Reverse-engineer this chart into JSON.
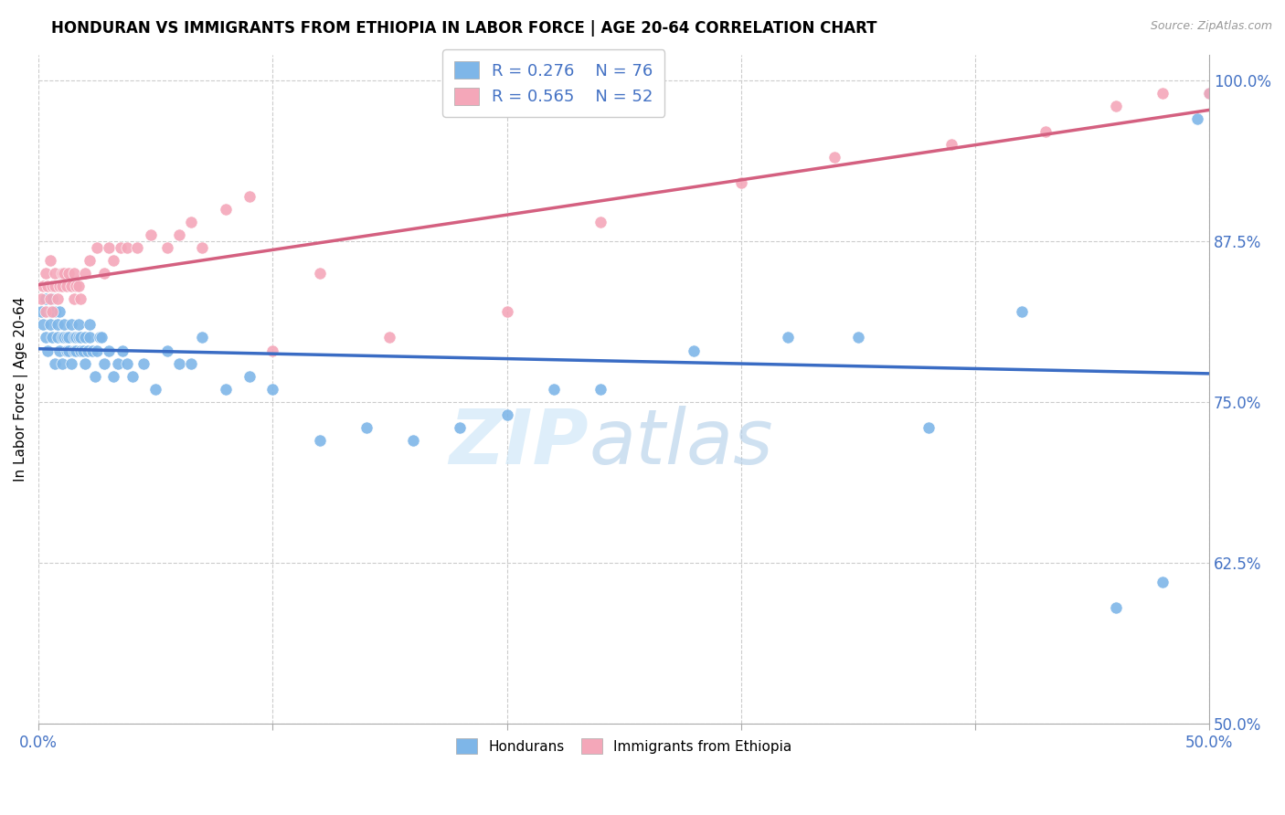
{
  "title": "HONDURAN VS IMMIGRANTS FROM ETHIOPIA IN LABOR FORCE | AGE 20-64 CORRELATION CHART",
  "source": "Source: ZipAtlas.com",
  "ylabel": "In Labor Force | Age 20-64",
  "xlim": [
    0.0,
    0.5
  ],
  "ylim": [
    0.5,
    1.02
  ],
  "yticks_right": [
    0.5,
    0.625,
    0.75,
    0.875,
    1.0
  ],
  "ytick_right_labels": [
    "50.0%",
    "62.5%",
    "75.0%",
    "87.5%",
    "100.0%"
  ],
  "blue_color": "#7EB6E8",
  "pink_color": "#F4A7B9",
  "blue_line_color": "#3A6CC4",
  "pink_line_color": "#D46080",
  "watermark": "ZIPatlas",
  "blue_R": 0.276,
  "blue_N": 76,
  "pink_R": 0.565,
  "pink_N": 52,
  "hondurans_x": [
    0.001,
    0.002,
    0.003,
    0.003,
    0.004,
    0.005,
    0.005,
    0.006,
    0.006,
    0.007,
    0.007,
    0.008,
    0.008,
    0.009,
    0.009,
    0.01,
    0.01,
    0.011,
    0.011,
    0.012,
    0.012,
    0.013,
    0.013,
    0.014,
    0.014,
    0.015,
    0.015,
    0.016,
    0.016,
    0.017,
    0.017,
    0.018,
    0.018,
    0.019,
    0.02,
    0.02,
    0.021,
    0.022,
    0.022,
    0.023,
    0.024,
    0.025,
    0.026,
    0.027,
    0.028,
    0.03,
    0.032,
    0.034,
    0.036,
    0.038,
    0.04,
    0.045,
    0.05,
    0.055,
    0.06,
    0.065,
    0.07,
    0.08,
    0.09,
    0.1,
    0.12,
    0.14,
    0.16,
    0.18,
    0.2,
    0.22,
    0.24,
    0.28,
    0.32,
    0.35,
    0.38,
    0.42,
    0.46,
    0.48,
    0.495,
    0.5
  ],
  "hondurans_y": [
    0.82,
    0.81,
    0.83,
    0.8,
    0.79,
    0.82,
    0.81,
    0.8,
    0.83,
    0.78,
    0.82,
    0.8,
    0.81,
    0.82,
    0.79,
    0.78,
    0.8,
    0.8,
    0.81,
    0.79,
    0.8,
    0.79,
    0.8,
    0.81,
    0.78,
    0.79,
    0.8,
    0.79,
    0.8,
    0.8,
    0.81,
    0.79,
    0.8,
    0.79,
    0.78,
    0.8,
    0.79,
    0.8,
    0.81,
    0.79,
    0.77,
    0.79,
    0.8,
    0.8,
    0.78,
    0.79,
    0.77,
    0.78,
    0.79,
    0.78,
    0.77,
    0.78,
    0.76,
    0.79,
    0.78,
    0.78,
    0.8,
    0.76,
    0.77,
    0.76,
    0.72,
    0.73,
    0.72,
    0.73,
    0.74,
    0.76,
    0.76,
    0.79,
    0.8,
    0.8,
    0.73,
    0.82,
    0.59,
    0.61,
    0.97,
    0.99
  ],
  "ethiopia_x": [
    0.001,
    0.002,
    0.003,
    0.003,
    0.004,
    0.005,
    0.005,
    0.006,
    0.006,
    0.007,
    0.007,
    0.008,
    0.009,
    0.01,
    0.01,
    0.011,
    0.012,
    0.013,
    0.014,
    0.015,
    0.015,
    0.016,
    0.017,
    0.018,
    0.02,
    0.022,
    0.025,
    0.028,
    0.03,
    0.032,
    0.035,
    0.038,
    0.042,
    0.048,
    0.055,
    0.06,
    0.065,
    0.07,
    0.08,
    0.09,
    0.1,
    0.12,
    0.15,
    0.2,
    0.24,
    0.3,
    0.34,
    0.39,
    0.43,
    0.46,
    0.48,
    0.5
  ],
  "ethiopia_y": [
    0.83,
    0.84,
    0.82,
    0.85,
    0.84,
    0.83,
    0.86,
    0.84,
    0.82,
    0.85,
    0.84,
    0.83,
    0.84,
    0.85,
    0.84,
    0.85,
    0.84,
    0.85,
    0.84,
    0.85,
    0.83,
    0.84,
    0.84,
    0.83,
    0.85,
    0.86,
    0.87,
    0.85,
    0.87,
    0.86,
    0.87,
    0.87,
    0.87,
    0.88,
    0.87,
    0.88,
    0.89,
    0.87,
    0.9,
    0.91,
    0.79,
    0.85,
    0.8,
    0.82,
    0.89,
    0.92,
    0.94,
    0.95,
    0.96,
    0.98,
    0.99,
    0.99
  ]
}
